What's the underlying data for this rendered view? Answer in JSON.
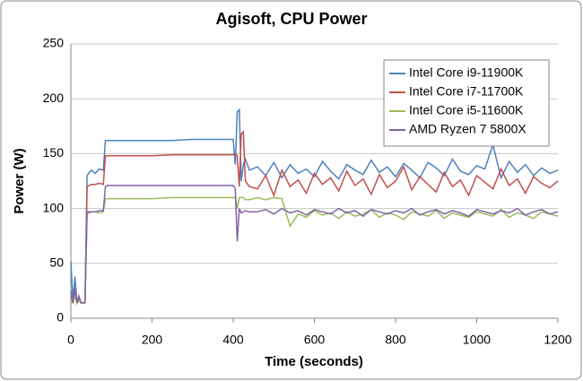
{
  "chart_data": {
    "type": "line",
    "title": "Agisoft, CPU Power",
    "x_label": "Time (seconds)",
    "y_label": "Power (W)",
    "x": [
      0,
      5,
      10,
      15,
      20,
      25,
      30,
      35,
      40,
      50,
      60,
      70,
      80,
      85,
      90,
      100,
      150,
      200,
      250,
      300,
      350,
      400,
      405,
      410,
      415,
      420,
      425,
      430,
      440,
      460,
      480,
      500,
      520,
      540,
      560,
      580,
      600,
      620,
      640,
      660,
      680,
      700,
      720,
      740,
      760,
      780,
      800,
      820,
      840,
      860,
      880,
      900,
      920,
      940,
      960,
      980,
      1000,
      1020,
      1040,
      1060,
      1080,
      1100,
      1120,
      1140,
      1160,
      1180,
      1200
    ],
    "series": [
      {
        "name": "Intel Core i9-11900K",
        "color": "#4f81bd",
        "values": [
          52,
          15,
          38,
          15,
          20,
          14,
          14,
          15,
          130,
          135,
          132,
          136,
          135,
          162,
          162,
          162,
          162,
          162,
          162,
          163,
          163,
          163,
          140,
          188,
          190,
          125,
          140,
          145,
          135,
          138,
          130,
          142,
          128,
          140,
          132,
          136,
          129,
          143,
          134,
          127,
          140,
          135,
          131,
          144,
          133,
          138,
          129,
          141,
          135,
          128,
          142,
          137,
          130,
          145,
          134,
          131,
          139,
          136,
          158,
          128,
          143,
          133,
          140,
          130,
          137,
          132,
          135
        ]
      },
      {
        "name": "Intel Core i7-11700K",
        "color": "#c0504d",
        "values": [
          20,
          15,
          25,
          14,
          18,
          14,
          14,
          14,
          120,
          122,
          122,
          123,
          122,
          148,
          148,
          148,
          148,
          148,
          149,
          149,
          149,
          149,
          150,
          148,
          120,
          168,
          170,
          125,
          120,
          118,
          130,
          112,
          135,
          120,
          126,
          114,
          132,
          122,
          128,
          116,
          134,
          121,
          127,
          113,
          131,
          119,
          125,
          138,
          117,
          129,
          122,
          115,
          133,
          120,
          126,
          112,
          130,
          124,
          118,
          136,
          121,
          127,
          114,
          129,
          123,
          119,
          125
        ]
      },
      {
        "name": "Intel Core i5-11600K",
        "color": "#9bbb59",
        "values": [
          15,
          14,
          20,
          14,
          16,
          14,
          14,
          15,
          95,
          97,
          97,
          96,
          97,
          109,
          109,
          109,
          109,
          109,
          110,
          110,
          110,
          110,
          110,
          100,
          110,
          110,
          110,
          108,
          108,
          110,
          108,
          110,
          109,
          84,
          95,
          92,
          98,
          94,
          96,
          91,
          97,
          93,
          95,
          99,
          92,
          96,
          94,
          90,
          97,
          95,
          93,
          98,
          91,
          96,
          94,
          92,
          97,
          95,
          93,
          99,
          92,
          96,
          94,
          91,
          97,
          95,
          93
        ]
      },
      {
        "name": "AMD Ryzen 7 5800X",
        "color": "#8064a2",
        "values": [
          25,
          14,
          28,
          14,
          20,
          14,
          14,
          14,
          97,
          97,
          97,
          98,
          98,
          120,
          121,
          121,
          121,
          121,
          121,
          121,
          121,
          121,
          118,
          70,
          100,
          96,
          97,
          98,
          97,
          97,
          99,
          95,
          100,
          96,
          98,
          94,
          99,
          97,
          95,
          100,
          96,
          98,
          93,
          99,
          97,
          95,
          98,
          96,
          100,
          94,
          97,
          99,
          95,
          98,
          96,
          93,
          99,
          97,
          95,
          98,
          96,
          100,
          94,
          97,
          99,
          95,
          97
        ]
      }
    ],
    "xlim": [
      0,
      1200
    ],
    "xticks": [
      0,
      200,
      400,
      600,
      800,
      1000,
      1200
    ],
    "ylim": [
      0,
      250
    ],
    "yticks": [
      0,
      50,
      100,
      150,
      200,
      250
    ],
    "grid": true,
    "legend": "upper right"
  }
}
